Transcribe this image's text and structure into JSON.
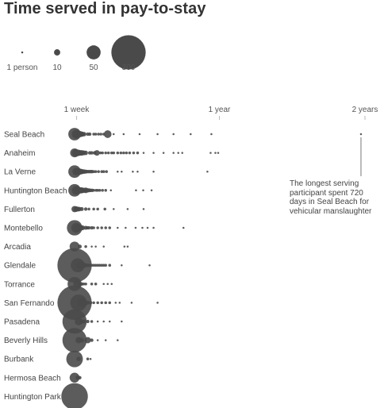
{
  "title": "Time served in pay-to-stay",
  "chart_data": {
    "type": "scatter",
    "encoding": "bubble size = number of people; x = days served",
    "size_legend": [
      {
        "label": "1 person",
        "count": 1
      },
      {
        "label": "10",
        "count": 10
      },
      {
        "label": "50",
        "count": 50
      },
      {
        "label": "300",
        "count": 300
      }
    ],
    "x_ticks": [
      {
        "label": "1 week",
        "days": 7
      },
      {
        "label": "1 year",
        "days": 365
      },
      {
        "label": "2 years",
        "days": 730
      }
    ],
    "xlim": [
      0,
      730
    ],
    "annotation": {
      "text": "The longest serving participant spent 720 days in Seal Beach for vehicular manslaughter",
      "city": "Seal Beach",
      "days": 720
    },
    "series": [
      {
        "name": "Seal Beach",
        "points": [
          [
            2,
            40
          ],
          [
            6,
            20
          ],
          [
            9,
            15
          ],
          [
            12,
            12
          ],
          [
            15,
            10
          ],
          [
            19,
            8
          ],
          [
            22,
            6
          ],
          [
            26,
            5
          ],
          [
            35,
            3
          ],
          [
            40,
            3
          ],
          [
            50,
            2
          ],
          [
            55,
            2
          ],
          [
            62,
            2
          ],
          [
            68,
            2
          ],
          [
            75,
            2
          ],
          [
            85,
            15
          ],
          [
            100,
            1
          ],
          [
            125,
            1
          ],
          [
            165,
            1
          ],
          [
            210,
            1
          ],
          [
            250,
            1
          ],
          [
            293,
            1
          ],
          [
            345,
            1
          ],
          [
            720,
            1
          ]
        ]
      },
      {
        "name": "Anaheim",
        "points": [
          [
            2,
            20
          ],
          [
            5,
            15
          ],
          [
            8,
            12
          ],
          [
            12,
            10
          ],
          [
            16,
            8
          ],
          [
            20,
            8
          ],
          [
            25,
            6
          ],
          [
            30,
            5
          ],
          [
            40,
            3
          ],
          [
            45,
            3
          ],
          [
            52,
            3
          ],
          [
            58,
            8
          ],
          [
            67,
            2
          ],
          [
            72,
            2
          ],
          [
            80,
            2
          ],
          [
            87,
            2
          ],
          [
            95,
            2
          ],
          [
            100,
            2
          ],
          [
            110,
            2
          ],
          [
            118,
            2
          ],
          [
            125,
            2
          ],
          [
            132,
            2
          ],
          [
            140,
            2
          ],
          [
            150,
            2
          ],
          [
            160,
            2
          ],
          [
            175,
            1
          ],
          [
            200,
            1
          ],
          [
            225,
            1
          ],
          [
            250,
            1
          ],
          [
            262,
            1
          ],
          [
            272,
            1
          ],
          [
            343,
            1
          ],
          [
            355,
            1
          ],
          [
            362,
            1
          ]
        ]
      },
      {
        "name": "La Verne",
        "points": [
          [
            2,
            40
          ],
          [
            6,
            15
          ],
          [
            10,
            12
          ],
          [
            14,
            10
          ],
          [
            18,
            8
          ],
          [
            22,
            6
          ],
          [
            26,
            5
          ],
          [
            30,
            4
          ],
          [
            34,
            3
          ],
          [
            38,
            3
          ],
          [
            42,
            3
          ],
          [
            46,
            3
          ],
          [
            50,
            2
          ],
          [
            55,
            2
          ],
          [
            62,
            2
          ],
          [
            70,
            2
          ],
          [
            75,
            2
          ],
          [
            82,
            2
          ],
          [
            110,
            1
          ],
          [
            120,
            1
          ],
          [
            148,
            1
          ],
          [
            160,
            1
          ],
          [
            200,
            1
          ],
          [
            335,
            1
          ]
        ]
      },
      {
        "name": "Huntington Beach",
        "points": [
          [
            2,
            40
          ],
          [
            6,
            20
          ],
          [
            10,
            15
          ],
          [
            14,
            10
          ],
          [
            18,
            10
          ],
          [
            22,
            8
          ],
          [
            26,
            6
          ],
          [
            30,
            8
          ],
          [
            34,
            5
          ],
          [
            38,
            4
          ],
          [
            42,
            3
          ],
          [
            46,
            3
          ],
          [
            50,
            2
          ],
          [
            56,
            2
          ],
          [
            60,
            2
          ],
          [
            65,
            2
          ],
          [
            72,
            2
          ],
          [
            80,
            2
          ],
          [
            93,
            1
          ],
          [
            156,
            1
          ],
          [
            174,
            1
          ],
          [
            195,
            1
          ]
        ]
      },
      {
        "name": "Fullerton",
        "points": [
          [
            2,
            10
          ],
          [
            6,
            8
          ],
          [
            10,
            6
          ],
          [
            14,
            5
          ],
          [
            20,
            4
          ],
          [
            30,
            3
          ],
          [
            38,
            2
          ],
          [
            50,
            2
          ],
          [
            60,
            2
          ],
          [
            78,
            2
          ],
          [
            100,
            1
          ],
          [
            135,
            1
          ],
          [
            175,
            1
          ]
        ]
      },
      {
        "name": "Montebello",
        "points": [
          [
            2,
            60
          ],
          [
            6,
            25
          ],
          [
            10,
            15
          ],
          [
            14,
            10
          ],
          [
            18,
            8
          ],
          [
            22,
            6
          ],
          [
            30,
            4
          ],
          [
            34,
            3
          ],
          [
            38,
            3
          ],
          [
            45,
            3
          ],
          [
            50,
            2
          ],
          [
            60,
            2
          ],
          [
            70,
            2
          ],
          [
            80,
            2
          ],
          [
            90,
            2
          ],
          [
            110,
            1
          ],
          [
            130,
            1
          ],
          [
            155,
            1
          ],
          [
            172,
            1
          ],
          [
            185,
            1
          ],
          [
            200,
            1
          ],
          [
            275,
            1
          ]
        ]
      },
      {
        "name": "Arcadia",
        "points": [
          [
            2,
            25
          ],
          [
            15,
            4
          ],
          [
            30,
            2
          ],
          [
            45,
            1
          ],
          [
            55,
            1
          ],
          [
            75,
            1
          ],
          [
            127,
            1
          ],
          [
            135,
            1
          ]
        ]
      },
      {
        "name": "Glendale",
        "points": [
          [
            2,
            300
          ],
          [
            10,
            50
          ],
          [
            15,
            15
          ],
          [
            20,
            10
          ],
          [
            26,
            6
          ],
          [
            30,
            4
          ],
          [
            35,
            3
          ],
          [
            40,
            3
          ],
          [
            45,
            2
          ],
          [
            50,
            2
          ],
          [
            55,
            2
          ],
          [
            60,
            2
          ],
          [
            65,
            2
          ],
          [
            70,
            2
          ],
          [
            75,
            2
          ],
          [
            80,
            2
          ],
          [
            90,
            2
          ],
          [
            120,
            1
          ],
          [
            190,
            1
          ]
        ]
      },
      {
        "name": "Torrance",
        "points": [
          [
            2,
            50
          ],
          [
            8,
            15
          ],
          [
            15,
            5
          ],
          [
            20,
            3
          ],
          [
            25,
            2
          ],
          [
            30,
            2
          ],
          [
            45,
            2
          ],
          [
            55,
            2
          ],
          [
            75,
            1
          ],
          [
            85,
            1
          ],
          [
            95,
            1
          ]
        ]
      },
      {
        "name": "San Fernando",
        "points": [
          [
            2,
            300
          ],
          [
            12,
            70
          ],
          [
            20,
            20
          ],
          [
            28,
            8
          ],
          [
            35,
            4
          ],
          [
            42,
            3
          ],
          [
            50,
            2
          ],
          [
            60,
            2
          ],
          [
            70,
            2
          ],
          [
            80,
            2
          ],
          [
            90,
            2
          ],
          [
            105,
            1
          ],
          [
            115,
            1
          ],
          [
            145,
            1
          ],
          [
            210,
            1
          ]
        ]
      },
      {
        "name": "Pasadena",
        "points": [
          [
            2,
            150
          ],
          [
            12,
            15
          ],
          [
            20,
            6
          ],
          [
            25,
            4
          ],
          [
            35,
            3
          ],
          [
            45,
            2
          ],
          [
            60,
            1
          ],
          [
            75,
            1
          ],
          [
            90,
            1
          ],
          [
            120,
            1
          ]
        ]
      },
      {
        "name": "Beverly Hills",
        "points": [
          [
            2,
            150
          ],
          [
            12,
            10
          ],
          [
            20,
            6
          ],
          [
            35,
            10
          ],
          [
            45,
            3
          ],
          [
            60,
            1
          ],
          [
            80,
            1
          ],
          [
            110,
            1
          ]
        ]
      },
      {
        "name": "Burbank",
        "points": [
          [
            2,
            70
          ],
          [
            12,
            5
          ],
          [
            35,
            2
          ],
          [
            42,
            1
          ]
        ]
      },
      {
        "name": "Hermosa Beach",
        "points": [
          [
            2,
            25
          ],
          [
            10,
            5
          ],
          [
            15,
            3
          ]
        ]
      },
      {
        "name": "Huntington Park",
        "points": [
          [
            2,
            180
          ]
        ]
      }
    ]
  }
}
